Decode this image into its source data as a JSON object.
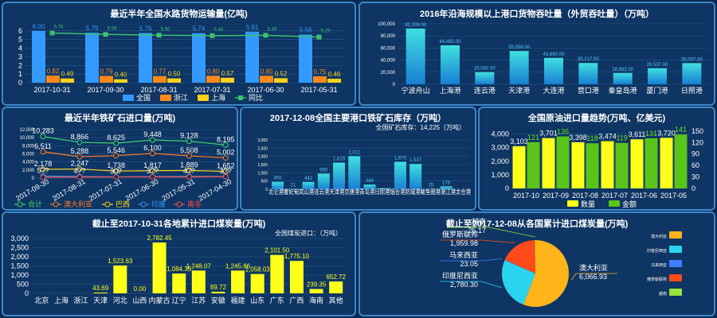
{
  "chart_data": [
    {
      "id": "road",
      "type": "bar",
      "title": "最近半年全国水路货物运输量(亿吨)",
      "categories": [
        "2017-10-31",
        "2017-09-30",
        "2017-08-31",
        "2017-07-31",
        "2017-06-30",
        "2017-05-31"
      ],
      "ylim": [
        0,
        7
      ],
      "yticks": [
        0,
        1,
        2,
        3,
        4,
        5,
        6
      ],
      "series": [
        {
          "name": "全国",
          "kind": "bar",
          "color": "#3399ff",
          "values": [
            6.0,
            5.79,
            5.76,
            5.74,
            5.91,
            5.58
          ]
        },
        {
          "name": "浙江",
          "kind": "bar",
          "color": "#ff8a1a",
          "values": [
            0.82,
            0.79,
            0.77,
            0.8,
            0.8,
            0.75
          ]
        },
        {
          "name": "上海",
          "kind": "bar",
          "color": "#ffd21a",
          "values": [
            0.49,
            0.4,
            0.5,
            0.57,
            0.52,
            0.46
          ]
        },
        {
          "name": "同比",
          "kind": "line",
          "color": "#3fbf6f",
          "values": [
            5.76,
            5.59,
            5.5,
            5.45,
            5.49,
            5.29
          ]
        }
      ]
    },
    {
      "id": "port",
      "type": "bar",
      "title": "2016年沿海规模以上港口货物吞吐量（外贸吞吐量）（万吨）",
      "categories": [
        "宁波舟山",
        "上海港",
        "连云港",
        "天津港",
        "大连港",
        "营口港",
        "秦皇岛港",
        "厦门港",
        "日照港"
      ],
      "ylim": [
        0,
        100000
      ],
      "yticks": [
        0,
        20000,
        40000,
        60000,
        80000,
        100000
      ],
      "ytick_labels": [
        "0",
        "20,000",
        "40,000",
        "60,000",
        "80,000",
        "100,000"
      ],
      "values": [
        92209,
        64482,
        20082,
        55056,
        43660,
        35217,
        18682,
        26537,
        35007
      ],
      "value_labels": [
        "92,209.00",
        "64,482.00",
        "20,082.00",
        "55,056.00",
        "43,660.00",
        "35,217.00",
        "18,682.00",
        "26,537.00",
        "35,007.00"
      ]
    },
    {
      "id": "ironimport",
      "type": "line",
      "title": "最近半年铁矿石进口量(万吨)",
      "categories": [
        "2017-09-30",
        "2017-08-31",
        "2017-07-31",
        "2017-06-30",
        "2017-05-31",
        "2017-04-30"
      ],
      "ylim": [
        0,
        12000
      ],
      "yticks": [
        0,
        2000,
        4000,
        6000,
        8000,
        10000,
        12000
      ],
      "ytick_labels": [
        "0",
        "2,000",
        "4,000",
        "6,000",
        "8,000",
        "10,000",
        "12,000"
      ],
      "series": [
        {
          "name": "合计",
          "color": "#3fd36f",
          "values": [
            10283,
            8866,
            8625,
            9448,
            9128,
            8195
          ],
          "labels": [
            "10,283",
            "8,866",
            "8,625",
            "9,448",
            "9,128",
            "8,195"
          ]
        },
        {
          "name": "澳大利亚",
          "color": "#ff7a2a",
          "values": [
            6511,
            5288,
            5546,
            6100,
            5508,
            5002
          ],
          "labels": [
            "6,511",
            "5,288",
            "5,546",
            "6,100",
            "5,508",
            "5,002"
          ]
        },
        {
          "name": "巴西",
          "color": "#ffd21a",
          "values": [
            2178,
            2247,
            1738,
            1817,
            1889,
            1652
          ],
          "labels": [
            "2,178",
            "2,247",
            "1,738",
            "1,817",
            "1,889",
            "1,652"
          ]
        },
        {
          "name": "印度",
          "color": "#3399ff",
          "values": [
            500,
            400,
            307,
            360,
            412,
            390
          ],
          "labels": [
            "5??",
            "4??",
            "307",
            "3??",
            "4??",
            "3??"
          ]
        },
        {
          "name": "南非",
          "color": "#ff4d4d",
          "values": [
            200,
            250,
            280,
            290,
            300,
            350
          ],
          "labels": [
            "",
            "",
            "",
            "",
            "",
            ""
          ]
        }
      ]
    },
    {
      "id": "ironstock",
      "type": "bar",
      "title": "2017-12-08全国主要港口铁矿石库存（万吨）",
      "subtitle": "全国矿石库存：14,225（万吨）",
      "categories": [
        "北仑港",
        "曹妃甸港",
        "岚山港",
        "连云港",
        "天津港",
        "京唐港",
        "青岛港",
        "日照港",
        "烟台港",
        "防城港",
        "鲅鱼圈港",
        "湛江港",
        "太仓港"
      ],
      "xtick_text": "北仑港曹妃甸岚山港连云港天津港京唐港青岛港日照港烟台港防城港鲅鱼圈港湛江港太仓港",
      "ylim": [
        0,
        3000
      ],
      "yticks": [
        0,
        500,
        1000,
        1500,
        2000,
        2500,
        3000
      ],
      "ytick_labels": [
        "0",
        "500",
        "1,000",
        "1,500",
        "2,000",
        "2,500",
        "3,000"
      ],
      "values": [
        450,
        21,
        442,
        950,
        1619,
        2012,
        284,
        60,
        1670,
        1537,
        25,
        178,
        0
      ],
      "value_labels": [
        "450",
        "21",
        "442",
        "950",
        "1,619",
        "2,012",
        "284",
        "",
        "1,670",
        "1,537",
        "25",
        "178",
        ""
      ]
    },
    {
      "id": "crude",
      "type": "bar",
      "title": "全国原油进口量趋势(万吨、亿美元)",
      "categories": [
        "2017-10",
        "2017-09",
        "2017-08",
        "2017-07",
        "2017-06",
        "2017-05"
      ],
      "ylim": [
        0,
        4500
      ],
      "y2lim": [
        0,
        160
      ],
      "yticks": [
        0,
        1000,
        2000,
        3000,
        4000
      ],
      "ytick_labels": [
        "0",
        "1,000",
        "2,000",
        "3,000",
        "4,000"
      ],
      "y2ticks": [
        0,
        30,
        60,
        90,
        120,
        150
      ],
      "series": [
        {
          "name": "数量",
          "color": "#ffff1a",
          "values": [
            3103,
            3701,
            3398,
            3474,
            3611,
            3720
          ],
          "labels": [
            "3,103",
            "3,701",
            "3,398",
            "3,474",
            "3,611",
            "3,720"
          ]
        },
        {
          "name": "金额",
          "color": "#5ac41a",
          "axis": "right",
          "values": [
            121,
            136,
            118,
            119,
            131,
            141
          ],
          "labels": [
            "121",
            "136",
            "118",
            "119",
            "131",
            "141"
          ]
        }
      ]
    },
    {
      "id": "coal",
      "type": "bar",
      "title": "截止至2017-10-31各地累计进口煤炭量(万吨)",
      "subtitle": "全国煤炭进口：（万吨）",
      "categories": [
        "北京",
        "上海",
        "浙江",
        "天津",
        "河北",
        "山西",
        "内蒙古",
        "辽宁",
        "江苏",
        "安徽",
        "福建",
        "山东",
        "广东",
        "广西",
        "海南",
        "其他"
      ],
      "ylim": [
        0,
        3000
      ],
      "yticks": [
        0,
        500,
        1000,
        1500,
        2000,
        2500,
        3000
      ],
      "ytick_labels": [
        "0",
        "500",
        "1,000",
        "1,500",
        "2,000",
        "2,500",
        "3,000"
      ],
      "values": [
        0,
        0,
        0,
        43.69,
        1523.63,
        0.0,
        2782.45,
        1084.35,
        1248.07,
        89.72,
        1245.86,
        1058.03,
        2101.5,
        1775.1,
        239.35,
        652.72
      ],
      "value_labels": [
        "",
        "",
        "",
        "43.69",
        "1,523.63",
        "0.00",
        "2,782.45",
        "1,084.35",
        "1,248.07",
        "89.72",
        "1,245.86",
        "1,058.03",
        "2,101.50",
        "1,775.10",
        "239.35",
        "652.72"
      ]
    },
    {
      "id": "coalsrc",
      "type": "pie",
      "title": "截止至2017-12-08从各国累计进口煤炭量(万吨)",
      "slices": [
        {
          "name": "澳大利亚",
          "value": 6066.93,
          "label": "6,066.93",
          "color": "#ffb41a"
        },
        {
          "name": "印度尼西亚",
          "value": 2780.3,
          "label": "2,780.30",
          "color": "#2ad4f0"
        },
        {
          "name": "马来西亚",
          "value": 23.05,
          "label": "23.05",
          "color": "#3f7fff"
        },
        {
          "name": "俄罗斯联邦",
          "value": 1959.98,
          "label": "1,959.98",
          "color": "#ff4a1a"
        },
        {
          "name": "越南",
          "value": 25.17,
          "label": "25.17",
          "color": "#9be23a"
        }
      ],
      "legend": [
        "澳大利亚",
        "印度尼西亚",
        "马来西亚",
        "俄罗斯联邦",
        "越南"
      ]
    }
  ]
}
